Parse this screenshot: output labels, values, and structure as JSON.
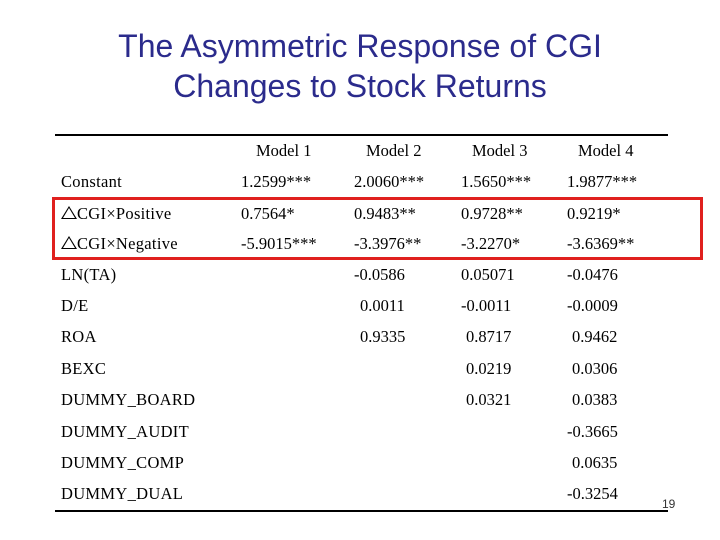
{
  "title": {
    "line1": "The Asymmetric Response of CGI",
    "line2": "Changes to Stock Returns"
  },
  "table": {
    "headers": [
      "Model 1",
      "Model 2",
      "Model 3",
      "Model 4"
    ],
    "rows": [
      {
        "label": "Constant",
        "delta": false,
        "cells": [
          "1.2599***",
          "2.0060***",
          "1.5650***",
          "1.9877***"
        ]
      },
      {
        "label": "CGI×Positive",
        "delta": true,
        "cells": [
          "0.7564*",
          "0.9483**",
          "0.9728**",
          "0.9219*"
        ]
      },
      {
        "label": "CGI×Negative",
        "delta": true,
        "cells": [
          "-5.9015***",
          "-3.3976**",
          "-3.2270*",
          "-3.6369**"
        ]
      },
      {
        "label": "LN(TA)",
        "delta": false,
        "cells": [
          "",
          "-0.0586",
          "0.05071",
          "-0.0476"
        ]
      },
      {
        "label": "D/E",
        "delta": false,
        "cells": [
          "",
          "0.0011",
          "-0.0011",
          "-0.0009"
        ]
      },
      {
        "label": "ROA",
        "delta": false,
        "cells": [
          "",
          "0.9335",
          "0.8717",
          "0.9462"
        ]
      },
      {
        "label": "BEXC",
        "delta": false,
        "cells": [
          "",
          "",
          "0.0219",
          "0.0306"
        ]
      },
      {
        "label": "DUMMY_BOARD",
        "delta": false,
        "cells": [
          "",
          "",
          "0.0321",
          "0.0383"
        ]
      },
      {
        "label": "DUMMY_AUDIT",
        "delta": false,
        "cells": [
          "",
          "",
          "",
          "-0.3665"
        ]
      },
      {
        "label": "DUMMY_COMP",
        "delta": false,
        "cells": [
          "",
          "",
          "",
          "0.0635"
        ]
      },
      {
        "label": "DUMMY_DUAL",
        "delta": false,
        "cells": [
          "",
          "",
          "",
          "-0.3254"
        ]
      }
    ]
  },
  "page_number": "19",
  "colors": {
    "title": "#2b2b8c",
    "highlight": "#e0201e"
  }
}
